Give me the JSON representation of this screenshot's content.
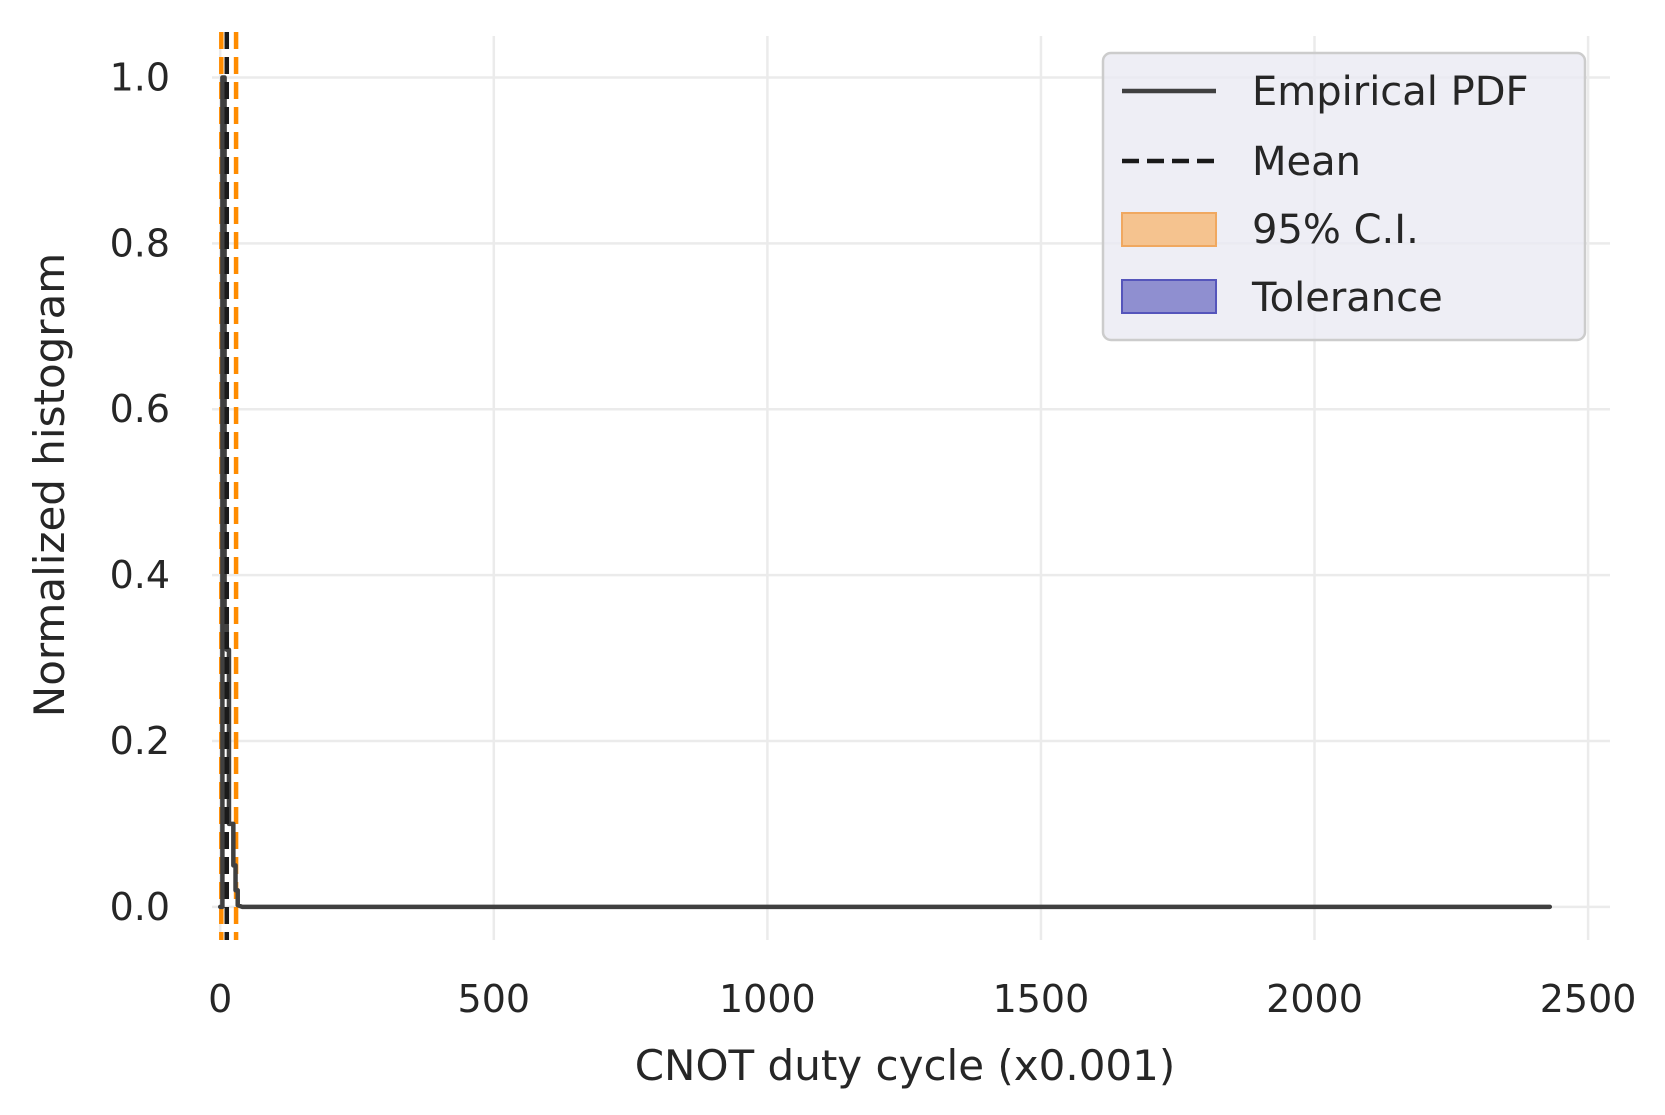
{
  "chart_data": {
    "type": "line",
    "xlabel": "CNOT duty cycle (x0.001)",
    "ylabel": "Normalized histogram",
    "xlim": [
      -15,
      2540
    ],
    "ylim": [
      -0.04,
      1.05
    ],
    "grid": true,
    "legend_position": "top-right",
    "x_ticks": [
      0,
      500,
      1000,
      1500,
      2000,
      2500
    ],
    "x_tick_labels": [
      "0",
      "500",
      "1000",
      "1500",
      "2000",
      "2500"
    ],
    "y_ticks": [
      0.0,
      0.2,
      0.4,
      0.6,
      0.8,
      1.0
    ],
    "y_tick_labels": [
      "0.0",
      "0.2",
      "0.4",
      "0.6",
      "0.8",
      "1.0"
    ],
    "series": [
      {
        "name": "Empirical PDF",
        "style": "solid",
        "color": "#404040",
        "x": [
          0,
          4,
          4,
          8,
          8,
          12,
          12,
          16,
          16,
          20,
          20,
          24,
          24,
          28,
          28,
          32,
          32,
          40,
          360,
          2360,
          2430
        ],
        "y": [
          0.0,
          0.0,
          1.0,
          1.0,
          0.34,
          0.34,
          0.31,
          0.31,
          0.1,
          0.1,
          0.1,
          0.1,
          0.05,
          0.05,
          0.02,
          0.02,
          0.002,
          0.0,
          0.0,
          0.0,
          0.0
        ]
      }
    ],
    "mean": {
      "name": "Mean",
      "x": 12,
      "color": "#1a1a1a"
    },
    "confidence_interval": {
      "name": "95% C.I.",
      "x_low": 2,
      "x_high": 29,
      "color": "#ff8c00",
      "fill": "#f5c38f"
    },
    "tolerance": {
      "name": "Tolerance",
      "fill": "#7f7fcc",
      "edge": "#5555bb"
    }
  }
}
